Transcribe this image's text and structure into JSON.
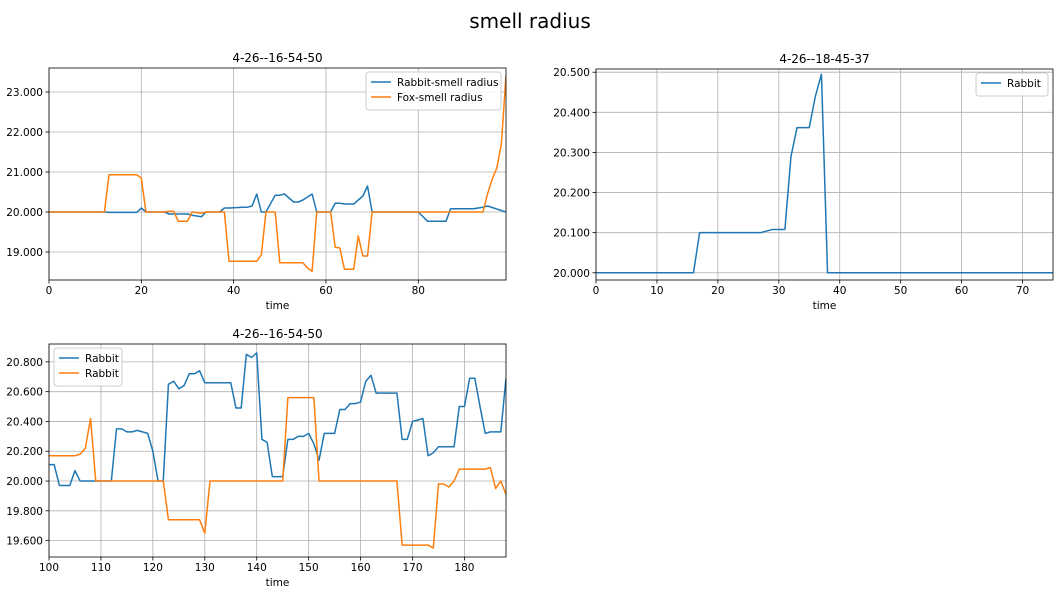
{
  "figure": {
    "suptitle": "smell radius"
  },
  "chart_data": [
    {
      "type": "line",
      "title": "4-26--16-54-50",
      "xlabel": "time",
      "ylabel": "",
      "xlim": [
        0,
        99
      ],
      "ylim": [
        18.3,
        23.6
      ],
      "xticks": [
        0,
        20,
        40,
        60,
        80
      ],
      "xticklabels": [
        "0",
        "20",
        "40",
        "60",
        "80"
      ],
      "yticks": [
        19,
        20,
        21,
        22,
        23
      ],
      "yticklabels": [
        "19.000",
        "20.000",
        "21.000",
        "22.000",
        "23.000"
      ],
      "grid": true,
      "legend_position": "top-right",
      "series": [
        {
          "name": "Rabbit-smell radius",
          "color": "#1f77b4",
          "x": [
            0,
            12,
            13,
            19,
            20,
            21,
            25,
            26,
            29,
            30,
            31,
            33,
            34,
            37,
            38,
            39,
            42,
            43,
            44,
            45,
            46,
            47,
            49,
            50,
            51,
            52,
            53,
            54,
            55,
            57,
            58,
            61,
            62,
            63,
            64,
            65,
            66,
            67,
            68,
            69,
            70,
            80,
            82,
            83,
            86,
            87,
            89,
            90,
            91,
            92,
            93,
            94,
            95,
            99
          ],
          "y": [
            20,
            20,
            19.99,
            19.99,
            20.1,
            20,
            20,
            19.95,
            19.95,
            19.95,
            19.92,
            19.88,
            20,
            20,
            20.1,
            20.1,
            20.12,
            20.12,
            20.15,
            20.45,
            20,
            20,
            20.42,
            20.42,
            20.45,
            20.35,
            20.25,
            20.25,
            20.3,
            20.45,
            20,
            20,
            20.22,
            20.22,
            20.2,
            20.2,
            20.2,
            20.3,
            20.4,
            20.65,
            20,
            20,
            19.77,
            19.77,
            19.77,
            20.08,
            20.08,
            20.08,
            20.08,
            20.08,
            20.1,
            20.12,
            20.15,
            20
          ]
        },
        {
          "name": "Fox-smell radius",
          "color": "#ff7f0e",
          "x": [
            0,
            12,
            13,
            19,
            20,
            21,
            25,
            26,
            27,
            28,
            29,
            30,
            31,
            33,
            34,
            37,
            38,
            39,
            45,
            46,
            47,
            49,
            50,
            55,
            56,
            57,
            58,
            61,
            62,
            63,
            64,
            65,
            66,
            67,
            68,
            69,
            70,
            93,
            94,
            95,
            96,
            97,
            98,
            99
          ],
          "y": [
            20,
            20,
            20.93,
            20.93,
            20.85,
            20,
            20,
            20.02,
            20.02,
            19.77,
            19.77,
            19.77,
            20,
            19.97,
            20,
            20,
            20,
            18.77,
            18.77,
            18.93,
            20,
            20,
            18.73,
            18.73,
            18.6,
            18.52,
            20,
            20,
            19.12,
            19.1,
            18.57,
            18.57,
            18.57,
            19.4,
            18.9,
            18.9,
            20,
            20,
            20,
            20.45,
            20.82,
            21.1,
            21.7,
            23.4
          ]
        }
      ]
    },
    {
      "type": "line",
      "title": "4-26--18-45-37",
      "xlabel": "time",
      "ylabel": "",
      "xlim": [
        0,
        75
      ],
      "ylim": [
        19.982,
        20.508
      ],
      "xticks": [
        0,
        10,
        20,
        30,
        40,
        50,
        60,
        70
      ],
      "xticklabels": [
        "0",
        "10",
        "20",
        "30",
        "40",
        "50",
        "60",
        "70"
      ],
      "yticks": [
        20.0,
        20.1,
        20.2,
        20.3,
        20.4,
        20.5
      ],
      "yticklabels": [
        "20.000",
        "20.100",
        "20.200",
        "20.300",
        "20.400",
        "20.500"
      ],
      "grid": true,
      "legend_position": "top-right",
      "series": [
        {
          "name": "Rabbit",
          "color": "#1f77b4",
          "x": [
            0,
            16,
            17,
            27,
            28,
            29,
            30,
            31,
            32,
            33,
            34,
            35,
            36,
            37,
            38,
            75
          ],
          "y": [
            20,
            20,
            20.1,
            20.1,
            20.104,
            20.108,
            20.108,
            20.108,
            20.29,
            20.362,
            20.362,
            20.362,
            20.44,
            20.495,
            20,
            20
          ]
        }
      ]
    },
    {
      "type": "line",
      "title": "4-26--16-54-50",
      "xlabel": "time",
      "ylabel": "",
      "xlim": [
        100,
        188
      ],
      "ylim": [
        19.49,
        20.92
      ],
      "xticks": [
        100,
        110,
        120,
        130,
        140,
        150,
        160,
        170,
        180
      ],
      "xticklabels": [
        "100",
        "110",
        "120",
        "130",
        "140",
        "150",
        "160",
        "170",
        "180"
      ],
      "yticks": [
        19.6,
        19.8,
        20.0,
        20.2,
        20.4,
        20.6,
        20.8
      ],
      "yticklabels": [
        "19.600",
        "19.800",
        "20.000",
        "20.200",
        "20.400",
        "20.600",
        "20.800"
      ],
      "grid": true,
      "legend_position": "top-left",
      "series": [
        {
          "name": "Rabbit",
          "color": "#1f77b4",
          "x": [
            100,
            101,
            102,
            104,
            105,
            106,
            108,
            112,
            113,
            114,
            115,
            116,
            117,
            118,
            119,
            120,
            121,
            122,
            123,
            124,
            125,
            126,
            127,
            128,
            129,
            130,
            135,
            136,
            137,
            138,
            139,
            140,
            141,
            142,
            143,
            145,
            146,
            147,
            148,
            149,
            150,
            151,
            152,
            153,
            154,
            155,
            156,
            157,
            158,
            159,
            160,
            161,
            162,
            163,
            166,
            167,
            168,
            169,
            170,
            171,
            172,
            173,
            174,
            175,
            176,
            177,
            178,
            179,
            180,
            181,
            182,
            183,
            184,
            185,
            186,
            187,
            188
          ],
          "y": [
            20.11,
            20.11,
            19.97,
            19.97,
            20.07,
            20,
            20,
            20,
            20.35,
            20.35,
            20.33,
            20.33,
            20.34,
            20.33,
            20.32,
            20.2,
            20,
            20,
            20.65,
            20.67,
            20.62,
            20.64,
            20.72,
            20.72,
            20.74,
            20.66,
            20.66,
            20.49,
            20.49,
            20.85,
            20.83,
            20.86,
            20.28,
            20.26,
            20.03,
            20.03,
            20.28,
            20.28,
            20.3,
            20.3,
            20.32,
            20.25,
            20.14,
            20.32,
            20.32,
            20.32,
            20.48,
            20.48,
            20.52,
            20.52,
            20.53,
            20.67,
            20.71,
            20.59,
            20.59,
            20.59,
            20.28,
            20.28,
            20.4,
            20.41,
            20.42,
            20.17,
            20.19,
            20.23,
            20.23,
            20.23,
            20.23,
            20.5,
            20.5,
            20.69,
            20.69,
            20.5,
            20.32,
            20.33,
            20.33,
            20.33,
            20.69
          ]
        },
        {
          "name": "Rabbit",
          "color": "#ff7f0e",
          "x": [
            100,
            105,
            106,
            107,
            108,
            109,
            110,
            112,
            113,
            120,
            121,
            122,
            123,
            129,
            130,
            131,
            132,
            145,
            146,
            151,
            152,
            167,
            168,
            173,
            174,
            175,
            176,
            177,
            178,
            179,
            180,
            184,
            185,
            186,
            187,
            188
          ],
          "y": [
            20.17,
            20.17,
            20.18,
            20.22,
            20.42,
            20,
            20,
            20,
            20,
            20,
            20,
            20,
            19.74,
            19.74,
            19.65,
            20,
            20,
            20,
            20.56,
            20.56,
            20,
            20,
            19.57,
            19.57,
            19.55,
            19.98,
            19.98,
            19.96,
            20,
            20.08,
            20.08,
            20.08,
            20.09,
            19.95,
            20,
            19.91
          ]
        }
      ]
    }
  ]
}
